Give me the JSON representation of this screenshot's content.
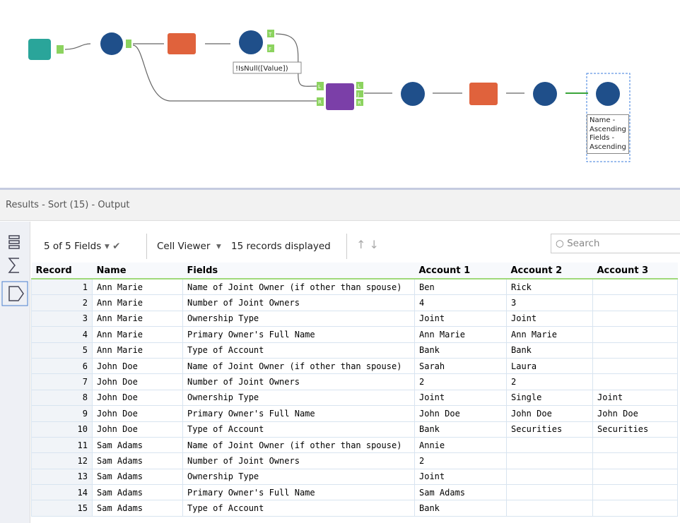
{
  "workflow": {
    "filter_anchors": [
      "T",
      "F"
    ],
    "filter_annotation": "!IsNull([Value])",
    "join_inputs": [
      "L",
      "R"
    ],
    "join_outputs": [
      "L",
      "J",
      "R"
    ],
    "sort_annotation": "Name - Ascending Fields - Ascending"
  },
  "results": {
    "title": "Results - Sort (15) - Output",
    "fields_selector": "5 of 5 Fields",
    "viewer": "Cell Viewer",
    "records_displayed": "15 records displayed",
    "search_placeholder": "Search"
  },
  "table": {
    "columns": [
      "Record",
      "Name",
      "Fields",
      "Account 1",
      "Account 2",
      "Account 3"
    ],
    "rows": [
      [
        1,
        "Ann Marie",
        "Name of Joint Owner (if other than spouse)",
        "Ben",
        "Rick",
        null
      ],
      [
        2,
        "Ann Marie",
        "Number of Joint Owners",
        "4",
        "3",
        null
      ],
      [
        3,
        "Ann Marie",
        "Ownership Type",
        "Joint",
        "Joint",
        null
      ],
      [
        4,
        "Ann Marie",
        "Primary Owner's Full Name",
        "Ann Marie",
        "Ann Marie",
        null
      ],
      [
        5,
        "Ann Marie",
        "Type of Account",
        "Bank",
        "Bank",
        null
      ],
      [
        6,
        "John Doe",
        "Name of Joint Owner (if other than spouse)",
        "Sarah",
        "Laura",
        null
      ],
      [
        7,
        "John Doe",
        "Number of Joint Owners",
        "2",
        "2",
        null
      ],
      [
        8,
        "John Doe",
        "Ownership Type",
        "Joint",
        "Single",
        "Joint"
      ],
      [
        9,
        "John Doe",
        "Primary Owner's Full Name",
        "John Doe",
        "John Doe",
        "John Doe"
      ],
      [
        10,
        "John Doe",
        "Type of Account",
        "Bank",
        "Securities",
        "Securities"
      ],
      [
        11,
        "Sam Adams",
        "Name of Joint Owner (if other than spouse)",
        "Annie",
        null,
        null
      ],
      [
        12,
        "Sam Adams",
        "Number of Joint Owners",
        "2",
        null,
        null
      ],
      [
        13,
        "Sam Adams",
        "Ownership Type",
        "Joint",
        null,
        null
      ],
      [
        14,
        "Sam Adams",
        "Primary Owner's Full Name",
        "Sam Adams",
        null,
        null
      ],
      [
        15,
        "Sam Adams",
        "Type of Account",
        "Bank",
        null,
        null
      ]
    ]
  }
}
